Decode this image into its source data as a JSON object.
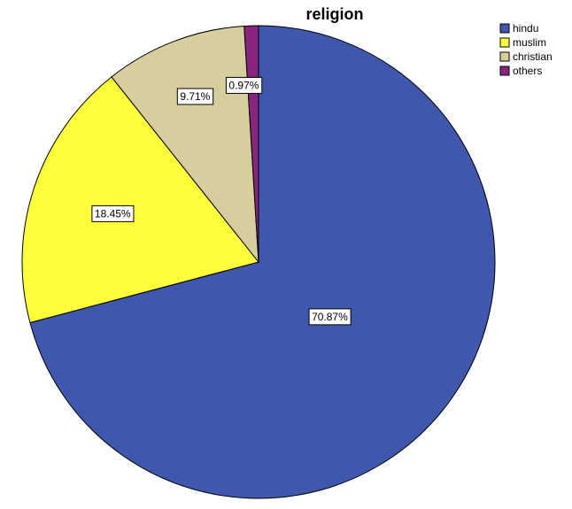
{
  "chart_data": {
    "type": "pie",
    "title": "religion",
    "categories": [
      "hindu",
      "muslim",
      "christian",
      "others"
    ],
    "values": [
      70.87,
      18.45,
      9.71,
      0.97
    ],
    "labels": [
      "70.87%",
      "18.45%",
      "9.71%",
      "0.97%"
    ],
    "colors": [
      "#3F57AC",
      "#FFFF3C",
      "#D6CE9C",
      "#87257F"
    ],
    "legend_position": "top-right",
    "start_angle": "12-o'clock",
    "direction": "clockwise"
  }
}
